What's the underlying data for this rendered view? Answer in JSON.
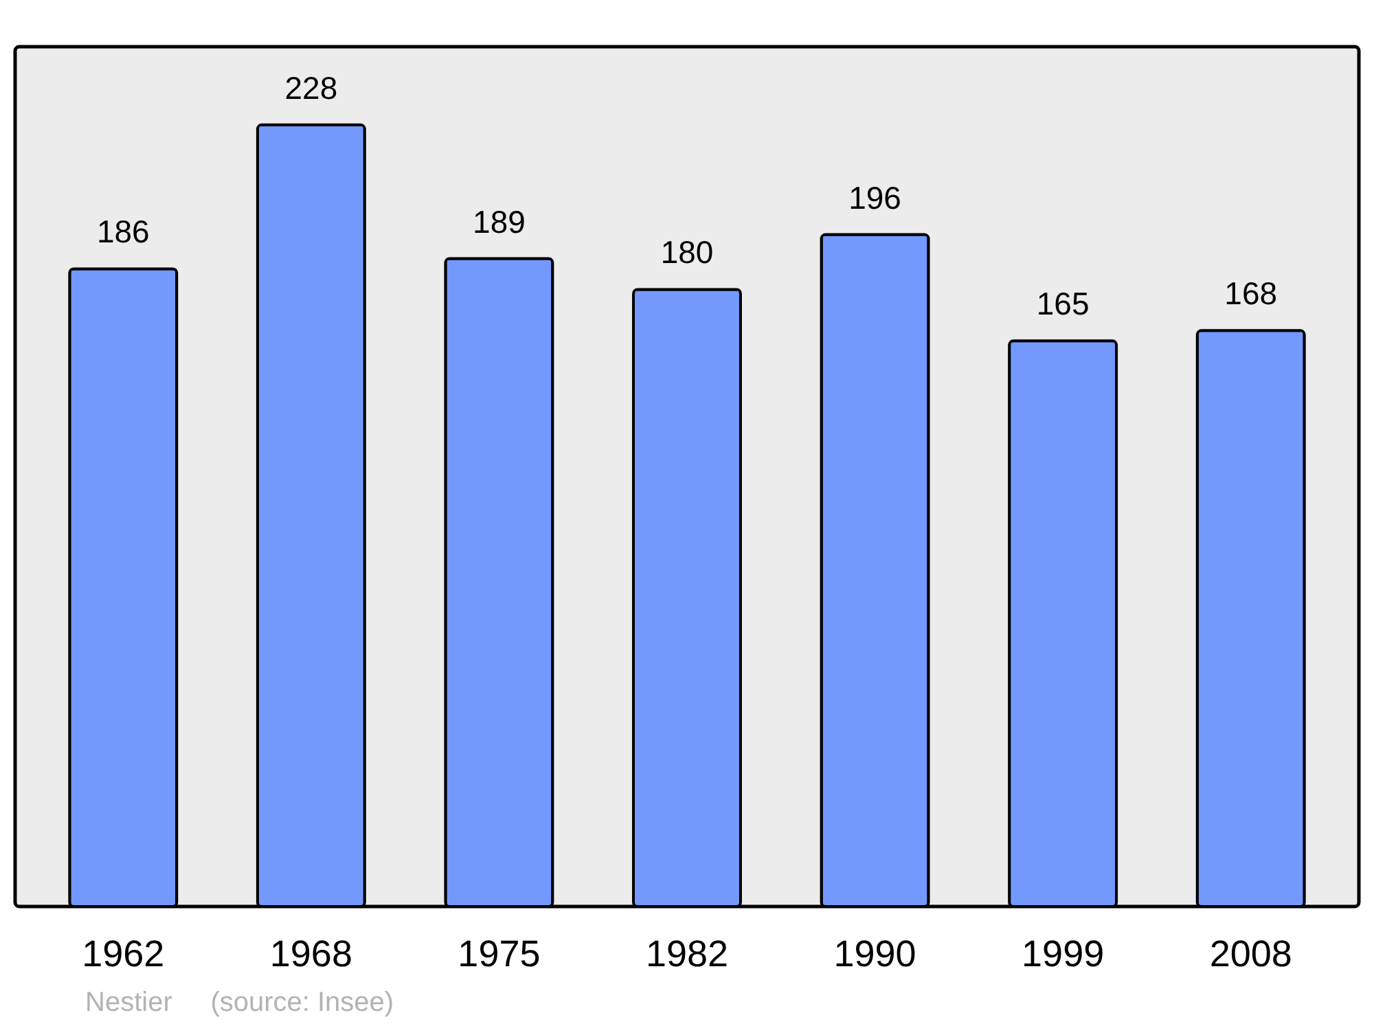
{
  "chart_data": {
    "type": "bar",
    "categories": [
      "1962",
      "1968",
      "1975",
      "1982",
      "1990",
      "1999",
      "2008"
    ],
    "values": [
      186,
      228,
      189,
      180,
      196,
      165,
      168
    ],
    "color": "#7399ff",
    "data_labels": true,
    "grid": false,
    "tick_labels": "x",
    "annotations": [
      "Nestier",
      "(source: Insee)"
    ]
  }
}
